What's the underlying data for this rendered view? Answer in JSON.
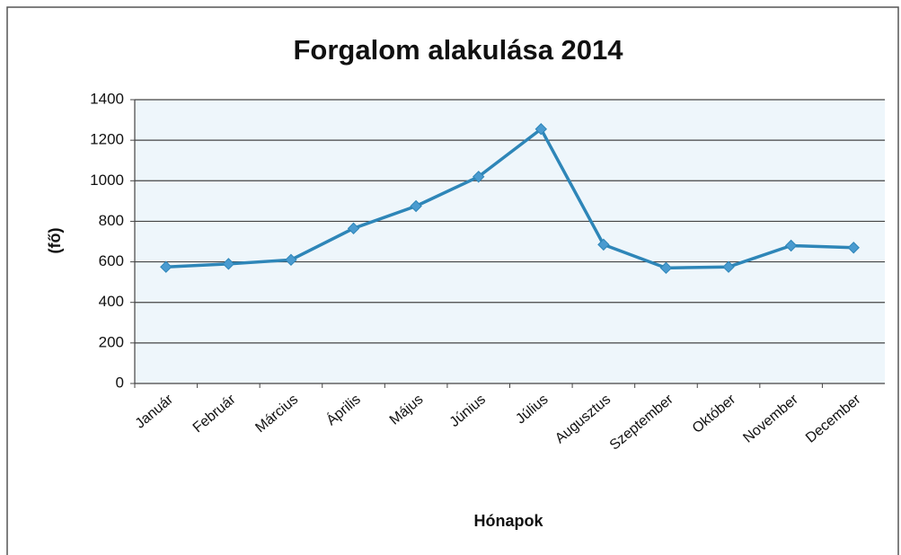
{
  "chart_data": {
    "type": "line",
    "title": "Forgalom alakulása 2014",
    "x_label": "Hónapok",
    "y_label": "(fő)",
    "categories": [
      "Január",
      "Február",
      "Március",
      "Április",
      "Május",
      "Június",
      "Július",
      "Augusztus",
      "Szeptember",
      "Október",
      "November",
      "December"
    ],
    "series": [
      {
        "name": "Forgalom",
        "color": "#2e86b8",
        "values": [
          575,
          590,
          610,
          765,
          875,
          1020,
          1255,
          685,
          570,
          575,
          680,
          670
        ]
      }
    ],
    "ylim": [
      0,
      1400
    ],
    "yticks": [
      0,
      200,
      400,
      600,
      800,
      1000,
      1200,
      1400
    ],
    "grid": true
  }
}
